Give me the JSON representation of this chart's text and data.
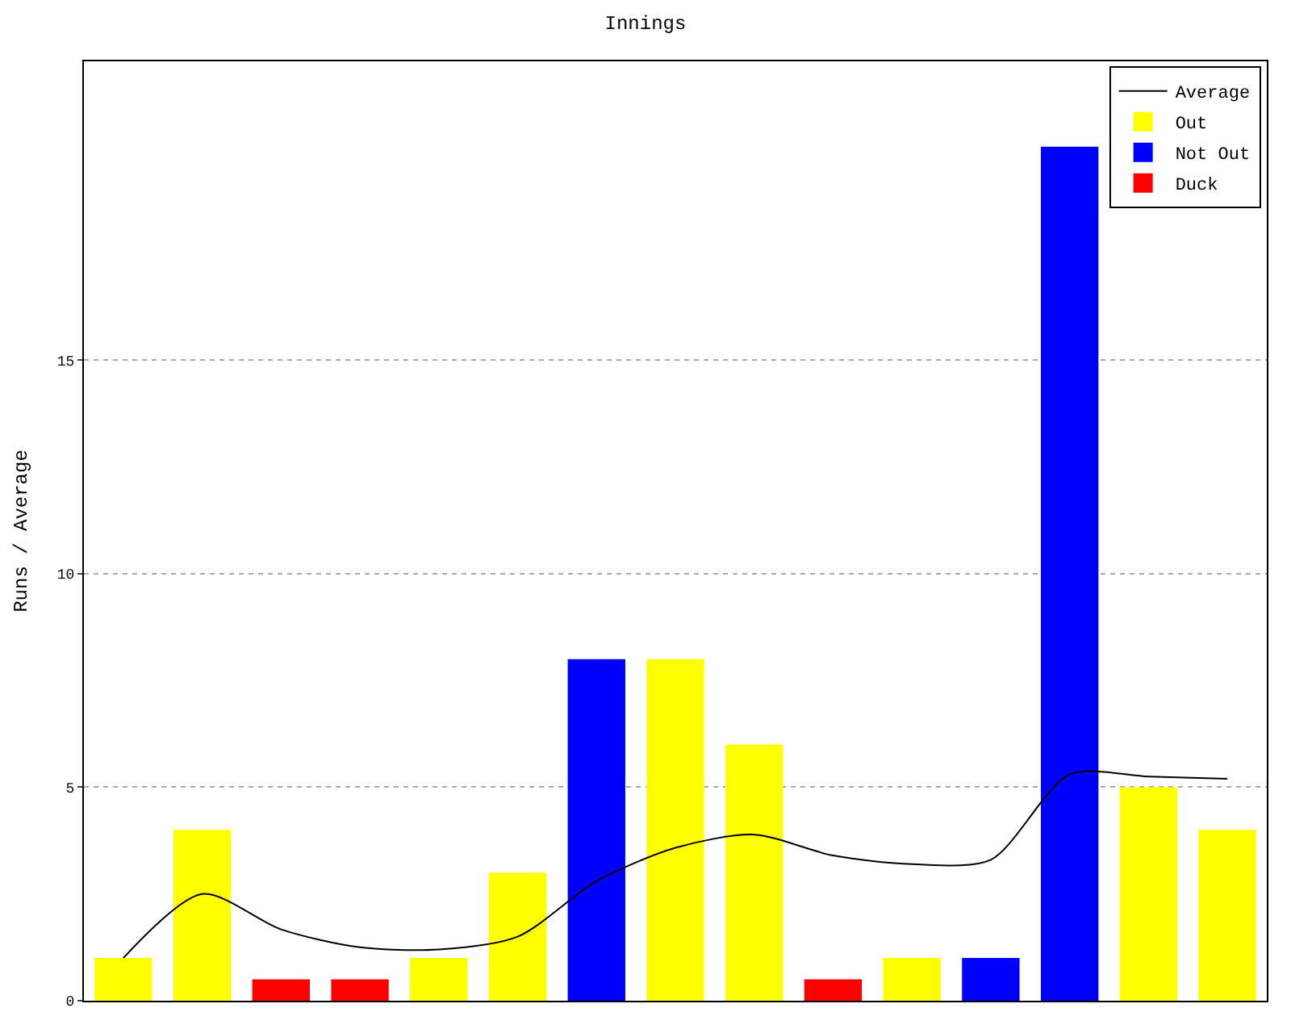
{
  "chart_data": {
    "type": "bar",
    "title": "Innings",
    "ylabel": "Runs / Average",
    "categories": [
      null,
      null,
      null,
      null,
      null,
      null,
      null,
      null,
      null,
      null,
      null,
      null,
      null,
      null,
      null
    ],
    "series": [
      {
        "name": "Average",
        "type": "line",
        "color": "#000000",
        "values": [
          1,
          2.5,
          1.67,
          1.25,
          1.2,
          1.5,
          2.8,
          3.58,
          3.89,
          3.4,
          3.2,
          3.3,
          5.3,
          5.25,
          5.2
        ]
      },
      {
        "name": "Out",
        "color": "#ffff00",
        "values": [
          1,
          4,
          null,
          null,
          1,
          3,
          null,
          8,
          6,
          null,
          1,
          null,
          null,
          5,
          4
        ]
      },
      {
        "name": "Not Out",
        "color": "#0000ff",
        "values": [
          null,
          null,
          null,
          null,
          null,
          null,
          8,
          null,
          null,
          null,
          null,
          1,
          20,
          null,
          null
        ]
      },
      {
        "name": "Duck",
        "color": "#ff0000",
        "values": [
          null,
          null,
          0.5,
          0.5,
          null,
          null,
          null,
          null,
          null,
          0.5,
          null,
          null,
          null,
          null,
          null
        ]
      }
    ],
    "ylim": [
      0,
      22
    ],
    "yticks": [
      0,
      5,
      10,
      15
    ],
    "grid": "y",
    "legend": "top right",
    "tick_labels": "y",
    "marker": "none",
    "line_style": "solid"
  }
}
